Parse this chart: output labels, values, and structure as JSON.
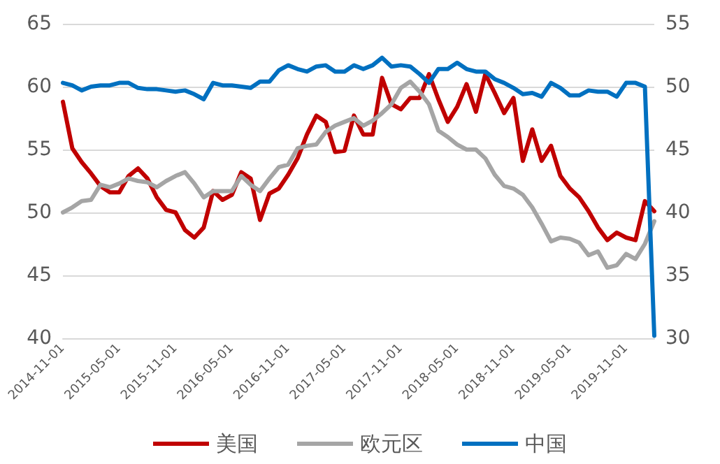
{
  "chart_data": {
    "type": "line",
    "categories": [
      "2014-11-01",
      null,
      null,
      null,
      null,
      null,
      "2015-05-01",
      null,
      null,
      null,
      null,
      null,
      "2015-11-01",
      null,
      null,
      null,
      null,
      null,
      "2016-05-01",
      null,
      null,
      null,
      null,
      null,
      "2016-11-01",
      null,
      null,
      null,
      null,
      null,
      "2017-05-01",
      null,
      null,
      null,
      null,
      null,
      "2017-11-01",
      null,
      null,
      null,
      null,
      null,
      "2018-05-01",
      null,
      null,
      null,
      null,
      null,
      "2018-11-01",
      null,
      null,
      null,
      null,
      null,
      "2019-05-01",
      null,
      null,
      null,
      null,
      null,
      "2019-11-01",
      null,
      null,
      null
    ],
    "series": [
      {
        "name": "美国",
        "color": "#c00000",
        "values": [
          58.8,
          55.1,
          54.0,
          53.1,
          52.1,
          51.6,
          51.6,
          52.9,
          53.5,
          52.7,
          51.2,
          50.2,
          50.0,
          48.6,
          48.0,
          48.8,
          51.7,
          51.0,
          51.4,
          53.2,
          52.7,
          49.4,
          51.5,
          51.9,
          53.0,
          54.3,
          56.2,
          57.7,
          57.2,
          54.8,
          54.9,
          57.7,
          56.2,
          56.2,
          60.7,
          58.6,
          58.2,
          59.1,
          59.1,
          61.0,
          59.0,
          57.2,
          58.4,
          60.2,
          58.0,
          61.0,
          59.5,
          57.9,
          59.1,
          54.1,
          56.6,
          54.1,
          55.3,
          52.9,
          51.9,
          51.2,
          50.1,
          48.8,
          47.8,
          48.4,
          48.0,
          47.8,
          50.9,
          50.1
        ]
      },
      {
        "name": "欧元区",
        "color": "#a5a5a5",
        "values": [
          50.0,
          50.4,
          50.9,
          51.0,
          52.2,
          52.0,
          52.3,
          52.7,
          52.5,
          52.4,
          52.0,
          52.5,
          52.9,
          53.2,
          52.3,
          51.2,
          51.7,
          51.7,
          51.7,
          52.9,
          52.2,
          51.7,
          52.7,
          53.6,
          53.8,
          55.1,
          55.3,
          55.4,
          56.4,
          56.9,
          57.2,
          57.5,
          56.9,
          57.3,
          57.9,
          58.6,
          59.9,
          60.4,
          59.6,
          58.6,
          56.5,
          56.0,
          55.4,
          55.0,
          55.0,
          54.3,
          53.0,
          52.1,
          51.9,
          51.4,
          50.4,
          49.1,
          47.7,
          48.0,
          47.9,
          47.6,
          46.6,
          46.9,
          45.6,
          45.8,
          46.7,
          46.3,
          47.5,
          49.3
        ]
      },
      {
        "name": "中国",
        "color": "#0070c0",
        "axis": "y2",
        "values": [
          50.3,
          50.1,
          49.7,
          50.0,
          50.1,
          50.1,
          50.3,
          50.3,
          49.9,
          49.8,
          49.8,
          49.7,
          49.6,
          49.7,
          49.4,
          49.0,
          50.3,
          50.1,
          50.1,
          50.0,
          49.9,
          50.4,
          50.4,
          51.3,
          51.7,
          51.4,
          51.2,
          51.6,
          51.7,
          51.2,
          51.2,
          51.7,
          51.4,
          51.7,
          52.3,
          51.6,
          51.7,
          51.6,
          51.0,
          50.3,
          51.4,
          51.4,
          51.9,
          51.4,
          51.2,
          51.2,
          50.6,
          50.3,
          49.9,
          49.4,
          49.5,
          49.2,
          50.3,
          49.9,
          49.3,
          49.3,
          49.7,
          49.6,
          49.6,
          49.2,
          50.3,
          50.3,
          50.0,
          30.2
        ]
      }
    ],
    "ylim": [
      40,
      65
    ],
    "yticks": [
      40,
      45,
      50,
      55,
      60,
      65
    ],
    "y2lim": [
      30,
      55
    ],
    "y2ticks": [
      30,
      35,
      40,
      45,
      50,
      55
    ],
    "grid": "y",
    "legend": "bottom",
    "marker": "none",
    "line_style": "solid"
  }
}
